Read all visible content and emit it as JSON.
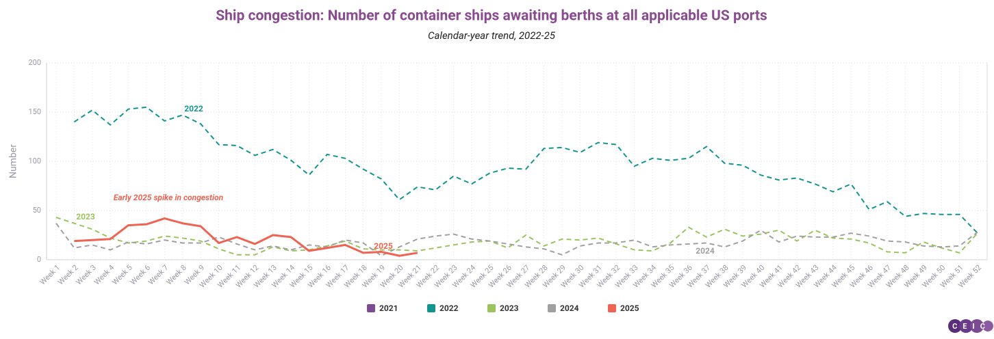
{
  "chart_data": {
    "type": "line",
    "title": "Ship congestion: Number of container ships awaiting berths at all applicable US ports",
    "subtitle": "Calendar-year trend, 2022-25",
    "y_label": "Number",
    "categories": [
      "Week 1",
      "Week 2",
      "Week 3",
      "Week 4",
      "Week 5",
      "Week 6",
      "Week 7",
      "Week 8",
      "Week 9",
      "Week 10",
      "Week 11",
      "Week 12",
      "Week 13",
      "Week 14",
      "Week 15",
      "Week 16",
      "Week 17",
      "Week 18",
      "Week 19",
      "Week 20",
      "Week 21",
      "Week 22",
      "Week 23",
      "Week 24",
      "Week 25",
      "Week 26",
      "Week 27",
      "Week 28",
      "Week 29",
      "Week 30",
      "Week 31",
      "Week 32",
      "Week 33",
      "Week 34",
      "Week 35",
      "Week 36",
      "Week 37",
      "Week 38",
      "Week 39",
      "Week 40",
      "Week 41",
      "Week 42",
      "Week 43",
      "Week 44",
      "Week 45",
      "Week 46",
      "Week 47",
      "Week 48",
      "Week 49",
      "Week 50",
      "Week 51",
      "Week 52"
    ],
    "series": [
      {
        "name": "2021",
        "color": "#7b4b94",
        "dashed": true,
        "values": [
          null,
          null,
          null,
          null,
          null,
          null,
          null,
          null,
          null,
          null,
          null,
          null,
          null,
          null,
          null,
          null,
          null,
          null,
          null,
          null,
          null,
          null,
          null,
          null,
          null,
          null,
          null,
          null,
          null,
          null,
          null,
          null,
          null,
          null,
          null,
          null,
          null,
          null,
          null,
          null,
          null,
          null,
          null,
          null,
          null,
          null,
          null,
          null,
          null,
          null,
          null,
          null
        ]
      },
      {
        "name": "2022",
        "color": "#12958f",
        "dashed": true,
        "values": [
          null,
          140,
          152,
          137,
          153,
          155,
          141,
          147,
          138,
          117,
          116,
          106,
          112,
          101,
          86,
          107,
          103,
          92,
          82,
          61,
          74,
          71,
          85,
          77,
          88,
          93,
          92,
          113,
          114,
          109,
          119,
          117,
          95,
          103,
          101,
          103,
          115,
          98,
          96,
          86,
          81,
          83,
          77,
          69,
          77,
          51,
          59,
          44,
          47,
          46,
          46,
          27
        ]
      },
      {
        "name": "2023",
        "color": "#9cc45e",
        "dashed": true,
        "values": [
          43,
          37,
          31,
          22,
          17,
          19,
          24,
          22,
          19,
          11,
          5,
          5,
          13,
          9,
          10,
          14,
          19,
          11,
          10,
          10,
          9,
          12,
          15,
          18,
          19,
          12,
          25,
          14,
          21,
          20,
          22,
          16,
          10,
          9,
          17,
          33,
          23,
          31,
          24,
          26,
          30,
          19,
          30,
          22,
          21,
          17,
          8,
          7,
          18,
          12,
          7,
          27
        ]
      },
      {
        "name": "2024",
        "color": "#a0a0a0",
        "dashed": true,
        "values": [
          37,
          12,
          15,
          10,
          18,
          16,
          20,
          17,
          17,
          23,
          16,
          10,
          14,
          10,
          15,
          13,
          20,
          17,
          4,
          13,
          21,
          24,
          26,
          21,
          19,
          16,
          13,
          11,
          5,
          14,
          17,
          17,
          20,
          13,
          15,
          16,
          17,
          13,
          19,
          30,
          18,
          24,
          23,
          23,
          27,
          24,
          19,
          18,
          14,
          13,
          14,
          28
        ]
      },
      {
        "name": "2025",
        "color": "#ee6352",
        "dashed": false,
        "values": [
          null,
          19,
          20,
          21,
          35,
          36,
          42,
          37,
          34,
          17,
          23,
          16,
          25,
          23,
          9,
          12,
          15,
          7,
          8,
          4,
          7,
          null,
          null,
          null,
          null,
          null,
          null,
          null,
          null,
          null,
          null,
          null,
          null,
          null,
          null,
          null,
          null,
          null,
          null,
          null,
          null,
          null,
          null,
          null,
          null,
          null,
          null,
          null,
          null,
          null,
          null,
          null
        ]
      }
    ],
    "annotations": [
      {
        "text": "2022",
        "color": "#12958f"
      },
      {
        "text": "2023",
        "color": "#9cc45e"
      },
      {
        "text": "2024",
        "color": "#a0a0a0"
      },
      {
        "text": "2025",
        "color": "#ee6352"
      },
      {
        "text": "Early 2025 spike in congestion",
        "color": "#ee6352"
      }
    ],
    "ylim": [
      0,
      200
    ],
    "yticks": [
      0,
      50,
      100,
      150,
      200
    ],
    "grid": true,
    "legend": "bottom",
    "logo": "CEIC"
  }
}
